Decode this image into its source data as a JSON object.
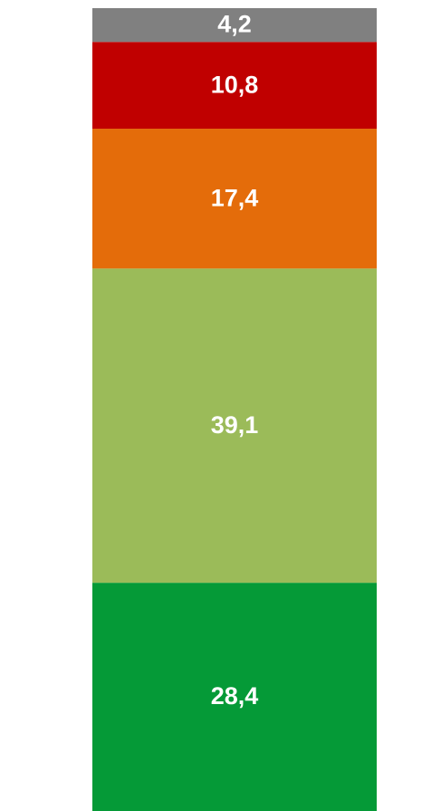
{
  "chart_data": {
    "type": "stacked_bar",
    "categories": [
      null
    ],
    "series": [
      {
        "color": "#059a37",
        "values": [
          28.4
        ],
        "value_labels": [
          "28,4"
        ]
      },
      {
        "color": "#9bbb59",
        "values": [
          39.1
        ],
        "value_labels": [
          "39,1"
        ]
      },
      {
        "color": "#e46c0a",
        "values": [
          17.4
        ],
        "value_labels": [
          "17,4"
        ]
      },
      {
        "color": "#c00000",
        "values": [
          10.8
        ],
        "value_labels": [
          "10,8"
        ]
      },
      {
        "color": "#808080",
        "values": [
          4.2
        ],
        "value_labels": [
          "4,2"
        ]
      }
    ]
  }
}
